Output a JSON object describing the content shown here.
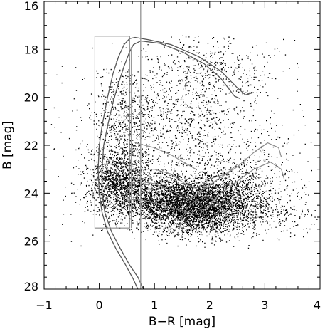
{
  "chart_data": {
    "type": "scatter",
    "title": "",
    "xlabel": "B−R [mag]",
    "ylabel": "B [mag]",
    "xlim": [
      -1,
      4
    ],
    "ylim": [
      28,
      16
    ],
    "y_inverted": true,
    "grid": false,
    "xticks": [
      -1,
      0,
      1,
      2,
      3,
      4
    ],
    "xtick_labels": [
      "−1",
      "0",
      "1",
      "2",
      "3",
      "4"
    ],
    "yticks": [
      16,
      18,
      20,
      22,
      24,
      26,
      28
    ],
    "ytick_labels": [
      "16",
      "18",
      "20",
      "22",
      "24",
      "26",
      "28"
    ],
    "colors": {
      "points": "#000000",
      "overlay": "#8c8c8c",
      "axes": "#000000"
    },
    "series": [
      {
        "kind": "density_clumps",
        "note_values": "estimated point-cloud centers [x, y, sx, sy, weight]",
        "clumps": [
          [
            1.7,
            24.6,
            0.55,
            0.55,
            0.36
          ],
          [
            0.35,
            23.4,
            0.28,
            0.65,
            0.14
          ],
          [
            1.1,
            24.1,
            0.55,
            0.55,
            0.14
          ],
          [
            2.3,
            24.1,
            0.45,
            0.5,
            0.08
          ],
          [
            1.3,
            21.0,
            0.75,
            1.2,
            0.1
          ],
          [
            0.5,
            20.8,
            0.25,
            1.0,
            0.04
          ],
          [
            2.0,
            18.8,
            0.6,
            0.7,
            0.04
          ],
          [
            2.6,
            23.0,
            0.55,
            1.0,
            0.05
          ],
          [
            3.1,
            25.0,
            0.5,
            0.5,
            0.02
          ],
          [
            1.5,
            22.0,
            1.5,
            2.5,
            0.03
          ]
        ],
        "n_points": 9000
      },
      {
        "kind": "isochrone_lines",
        "lines": [
          [
            [
              0.7,
              28.0
            ],
            [
              0.62,
              27.6
            ],
            [
              0.48,
              27.0
            ],
            [
              0.3,
              26.3
            ],
            [
              0.15,
              25.6
            ],
            [
              0.05,
              24.8
            ],
            [
              0.0,
              24.0
            ],
            [
              -0.02,
              23.0
            ],
            [
              0.0,
              22.0
            ],
            [
              0.05,
              21.2
            ],
            [
              0.15,
              20.0
            ],
            [
              0.25,
              19.0
            ],
            [
              0.35,
              18.3
            ],
            [
              0.45,
              17.8
            ],
            [
              0.55,
              17.55
            ],
            [
              0.65,
              17.5
            ],
            [
              0.9,
              17.6
            ],
            [
              1.3,
              17.8
            ],
            [
              1.8,
              18.3
            ],
            [
              2.2,
              18.9
            ],
            [
              2.5,
              19.6
            ],
            [
              2.65,
              19.9
            ],
            [
              2.8,
              19.8
            ]
          ],
          [
            [
              0.8,
              28.0
            ],
            [
              0.7,
              27.5
            ],
            [
              0.55,
              27.0
            ],
            [
              0.38,
              26.3
            ],
            [
              0.22,
              25.6
            ],
            [
              0.1,
              24.8
            ],
            [
              0.05,
              24.0
            ],
            [
              0.05,
              23.0
            ],
            [
              0.08,
              22.0
            ],
            [
              0.15,
              21.2
            ],
            [
              0.25,
              20.2
            ],
            [
              0.35,
              19.4
            ],
            [
              0.45,
              18.7
            ],
            [
              0.55,
              18.1
            ],
            [
              0.62,
              17.8
            ],
            [
              0.75,
              17.65
            ],
            [
              1.1,
              17.75
            ],
            [
              1.5,
              18.1
            ],
            [
              1.9,
              18.6
            ],
            [
              2.2,
              19.2
            ],
            [
              2.45,
              19.95
            ],
            [
              2.55,
              20.05
            ]
          ],
          [
            [
              0.5,
              24.3
            ],
            [
              0.7,
              24.25
            ],
            [
              1.0,
              24.4
            ],
            [
              1.3,
              24.6
            ],
            [
              1.6,
              24.8
            ],
            [
              1.8,
              24.9
            ],
            [
              2.0,
              24.5
            ],
            [
              2.2,
              24.0
            ],
            [
              2.5,
              23.5
            ],
            [
              2.8,
              23.0
            ],
            [
              3.1,
              22.7
            ],
            [
              3.3,
              23.0
            ],
            [
              3.35,
              23.4
            ]
          ],
          [
            [
              0.55,
              23.6
            ],
            [
              0.7,
              23.5
            ],
            [
              1.0,
              23.6
            ],
            [
              1.2,
              23.8
            ],
            [
              1.4,
              24.0
            ],
            [
              1.6,
              24.3
            ],
            [
              1.8,
              24.0
            ],
            [
              2.1,
              23.5
            ],
            [
              2.5,
              22.9
            ],
            [
              2.8,
              22.3
            ],
            [
              3.05,
              21.9
            ],
            [
              3.25,
              22.1
            ],
            [
              3.3,
              22.5
            ]
          ],
          [
            [
              0.6,
              23.0
            ],
            [
              1.0,
              23.0
            ],
            [
              1.3,
              23.2
            ],
            [
              1.55,
              23.6
            ],
            [
              1.75,
              23.8
            ],
            [
              2.0,
              23.4
            ],
            [
              2.3,
              23.2
            ],
            [
              2.5,
              22.8
            ]
          ],
          [
            [
              1.45,
              25.5
            ],
            [
              1.5,
              25.0
            ],
            [
              1.6,
              24.6
            ],
            [
              1.75,
              24.3
            ],
            [
              1.95,
              24.1
            ],
            [
              2.1,
              24.3
            ],
            [
              2.25,
              24.7
            ],
            [
              2.3,
              25.0
            ]
          ],
          [
            [
              0.65,
              21.9
            ],
            [
              1.0,
              22.1
            ],
            [
              1.3,
              22.4
            ],
            [
              1.6,
              22.8
            ],
            [
              1.75,
              23.0
            ]
          ]
        ]
      },
      {
        "kind": "selection_boxes",
        "boxes": [
          {
            "x": [
              -0.08,
              0.55
            ],
            "y": [
              17.45,
              25.45
            ]
          },
          {
            "x": [
              0.75,
              0.75
            ],
            "y": [
              16.0,
              28.0
            ]
          },
          {
            "x": [
              0.58,
              0.58
            ],
            "y": [
              17.9,
              25.45
            ]
          }
        ]
      }
    ]
  }
}
